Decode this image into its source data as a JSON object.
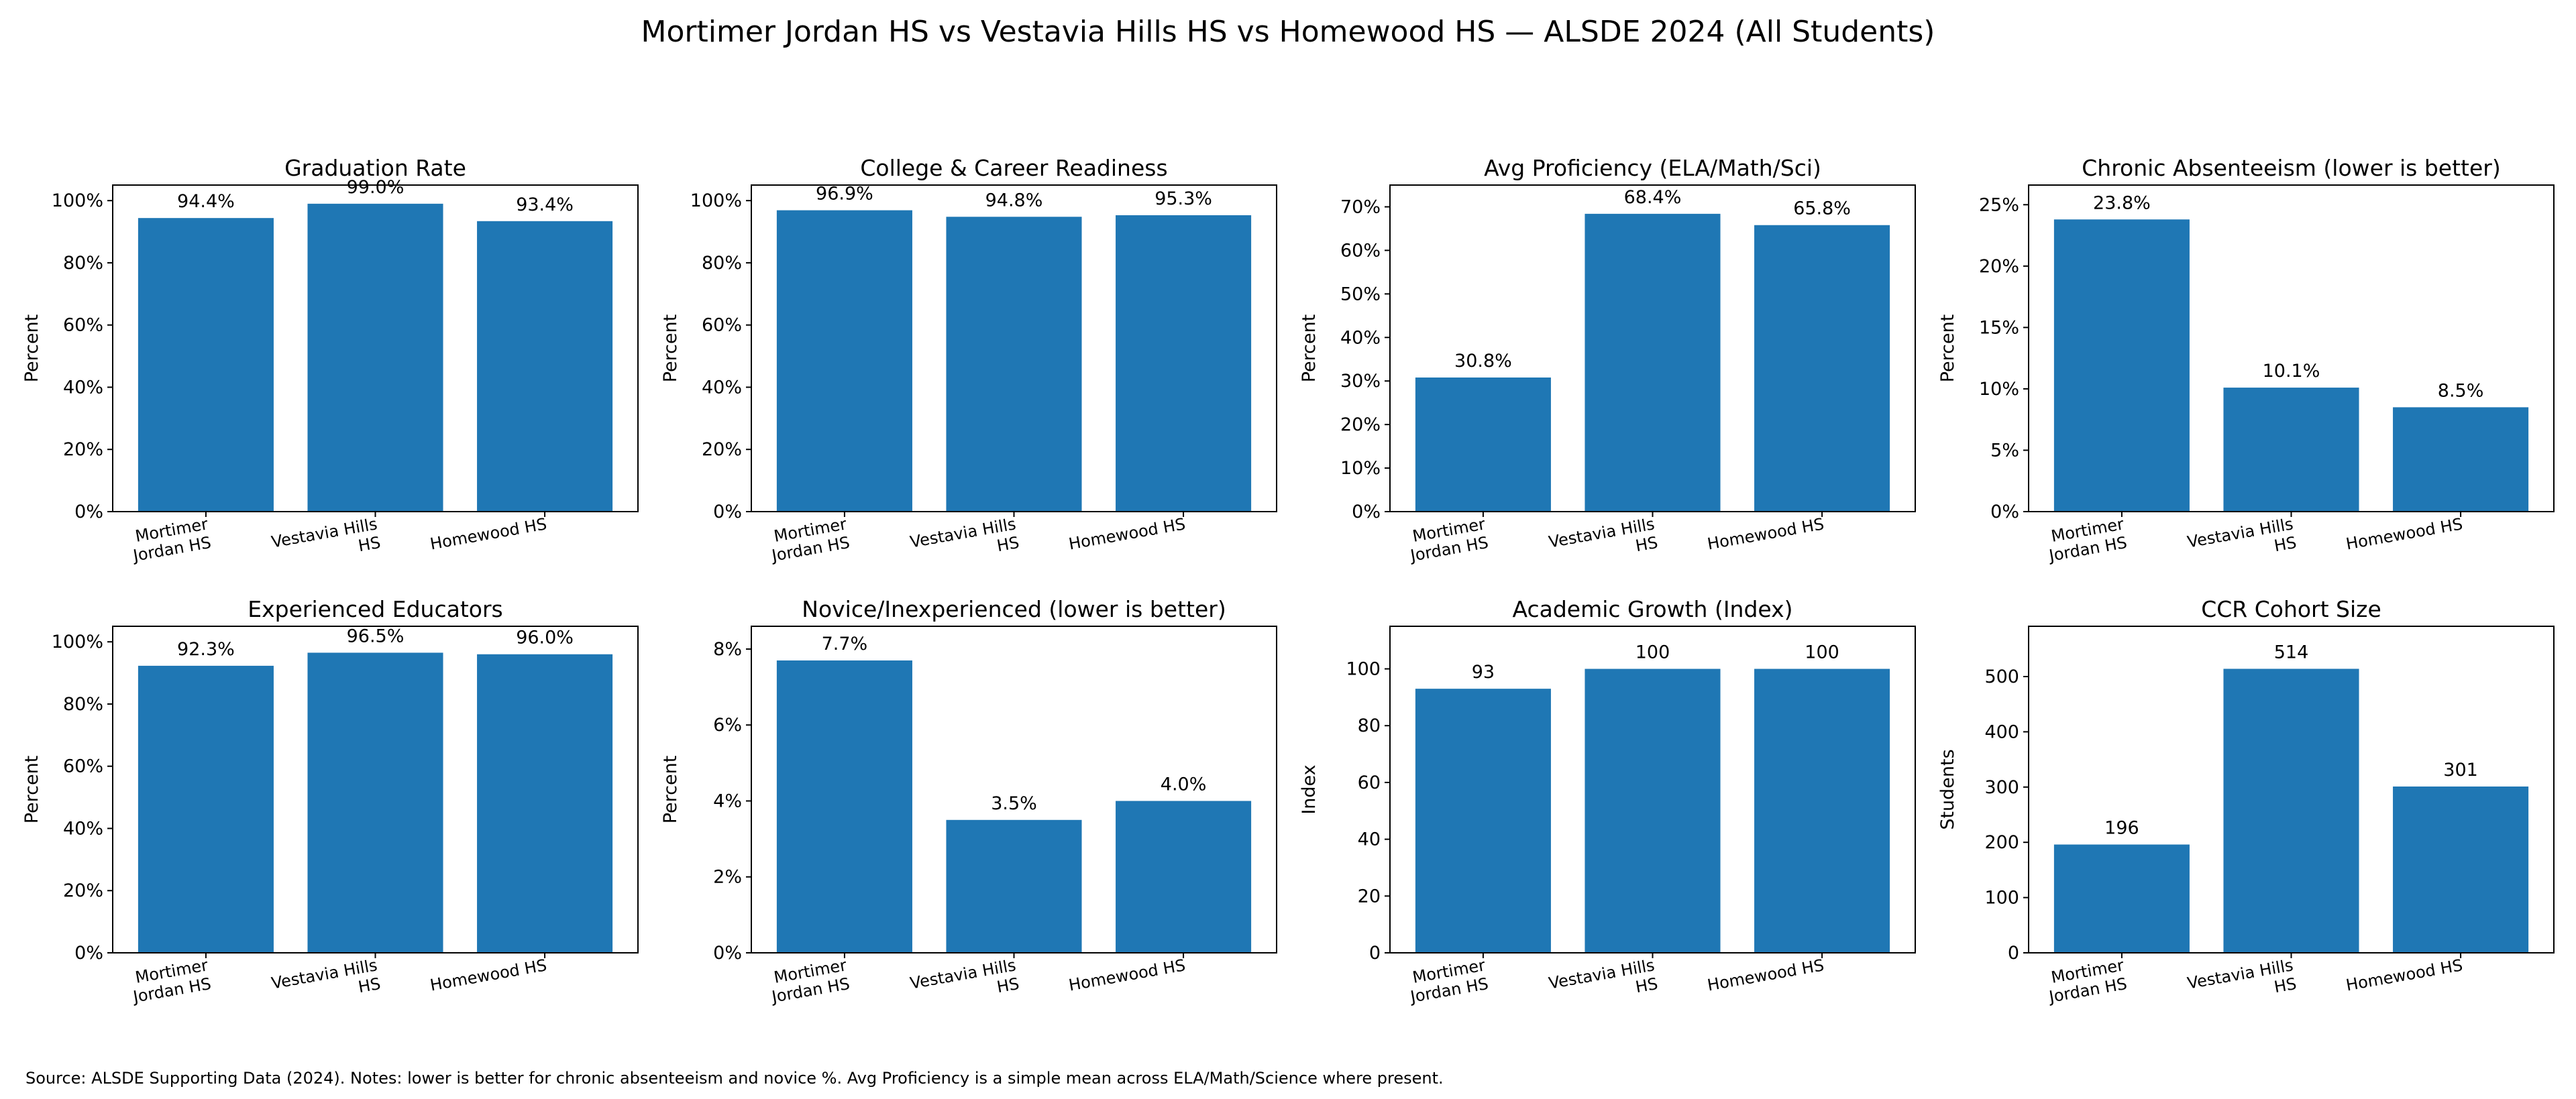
{
  "suptitle": "Mortimer Jordan HS vs Vestavia Hills HS vs Homewood HS — ALSDE 2024 (All Students)",
  "source_note": "Source: ALSDE Supporting Data (2024). Notes: lower is better for chronic absenteeism and novice %. Avg Proficiency is a simple mean across ELA/Math/Science where present.",
  "colors": {
    "bar": "#1f77b4",
    "axis": "#000000"
  },
  "chart_data": [
    {
      "type": "bar",
      "title": "Graduation Rate",
      "ylabel": "Percent",
      "categories": [
        [
          "Mortimer",
          "Jordan HS"
        ],
        [
          "Vestavia Hills",
          "HS"
        ],
        [
          "Homewood HS"
        ]
      ],
      "values": [
        94.4,
        99.0,
        93.4
      ],
      "value_labels": [
        "94.4%",
        "99.0%",
        "93.4%"
      ],
      "ylim": [
        0,
        105
      ],
      "yticks": [
        0,
        20,
        40,
        60,
        80,
        100
      ],
      "ytick_labels": [
        "0%",
        "20%",
        "40%",
        "60%",
        "80%",
        "100%"
      ]
    },
    {
      "type": "bar",
      "title": "College & Career Readiness",
      "ylabel": "Percent",
      "categories": [
        [
          "Mortimer",
          "Jordan HS"
        ],
        [
          "Vestavia Hills",
          "HS"
        ],
        [
          "Homewood HS"
        ]
      ],
      "values": [
        96.9,
        94.8,
        95.3
      ],
      "value_labels": [
        "96.9%",
        "94.8%",
        "95.3%"
      ],
      "ylim": [
        0,
        105
      ],
      "yticks": [
        0,
        20,
        40,
        60,
        80,
        100
      ],
      "ytick_labels": [
        "0%",
        "20%",
        "40%",
        "60%",
        "80%",
        "100%"
      ]
    },
    {
      "type": "bar",
      "title": "Avg Proficiency (ELA/Math/Sci)",
      "ylabel": "Percent",
      "categories": [
        [
          "Mortimer",
          "Jordan HS"
        ],
        [
          "Vestavia Hills",
          "HS"
        ],
        [
          "Homewood HS"
        ]
      ],
      "values": [
        30.8,
        68.4,
        65.8
      ],
      "value_labels": [
        "30.8%",
        "68.4%",
        "65.8%"
      ],
      "ylim": [
        0,
        75
      ],
      "yticks": [
        0,
        10,
        20,
        30,
        40,
        50,
        60,
        70
      ],
      "ytick_labels": [
        "0%",
        "10%",
        "20%",
        "30%",
        "40%",
        "50%",
        "60%",
        "70%"
      ]
    },
    {
      "type": "bar",
      "title": "Chronic Absenteeism (lower is better)",
      "ylabel": "Percent",
      "categories": [
        [
          "Mortimer",
          "Jordan HS"
        ],
        [
          "Vestavia Hills",
          "HS"
        ],
        [
          "Homewood HS"
        ]
      ],
      "values": [
        23.8,
        10.1,
        8.5
      ],
      "value_labels": [
        "23.8%",
        "10.1%",
        "8.5%"
      ],
      "ylim": [
        0,
        26.6
      ],
      "yticks": [
        0,
        5,
        10,
        15,
        20,
        25
      ],
      "ytick_labels": [
        "0%",
        "5%",
        "10%",
        "15%",
        "20%",
        "25%"
      ]
    },
    {
      "type": "bar",
      "title": "Experienced Educators",
      "ylabel": "Percent",
      "categories": [
        [
          "Mortimer",
          "Jordan HS"
        ],
        [
          "Vestavia Hills",
          "HS"
        ],
        [
          "Homewood HS"
        ]
      ],
      "values": [
        92.3,
        96.5,
        96.0
      ],
      "value_labels": [
        "92.3%",
        "96.5%",
        "96.0%"
      ],
      "ylim": [
        0,
        105
      ],
      "yticks": [
        0,
        20,
        40,
        60,
        80,
        100
      ],
      "ytick_labels": [
        "0%",
        "20%",
        "40%",
        "60%",
        "80%",
        "100%"
      ]
    },
    {
      "type": "bar",
      "title": "Novice/Inexperienced (lower is better)",
      "ylabel": "Percent",
      "categories": [
        [
          "Mortimer",
          "Jordan HS"
        ],
        [
          "Vestavia Hills",
          "HS"
        ],
        [
          "Homewood HS"
        ]
      ],
      "values": [
        7.7,
        3.5,
        4.0
      ],
      "value_labels": [
        "7.7%",
        "3.5%",
        "4.0%"
      ],
      "ylim": [
        0,
        8.6
      ],
      "yticks": [
        0,
        2,
        4,
        6,
        8
      ],
      "ytick_labels": [
        "0%",
        "2%",
        "4%",
        "6%",
        "8%"
      ]
    },
    {
      "type": "bar",
      "title": "Academic Growth (Index)",
      "ylabel": "Index",
      "categories": [
        [
          "Mortimer",
          "Jordan HS"
        ],
        [
          "Vestavia Hills",
          "HS"
        ],
        [
          "Homewood HS"
        ]
      ],
      "values": [
        93,
        100,
        100
      ],
      "value_labels": [
        "93",
        "100",
        "100"
      ],
      "ylim": [
        0,
        115
      ],
      "yticks": [
        0,
        20,
        40,
        60,
        80,
        100
      ],
      "ytick_labels": [
        "0",
        "20",
        "40",
        "60",
        "80",
        "100"
      ]
    },
    {
      "type": "bar",
      "title": "CCR Cohort Size",
      "ylabel": "Students",
      "categories": [
        [
          "Mortimer",
          "Jordan HS"
        ],
        [
          "Vestavia Hills",
          "HS"
        ],
        [
          "Homewood HS"
        ]
      ],
      "values": [
        196,
        514,
        301
      ],
      "value_labels": [
        "196",
        "514",
        "301"
      ],
      "ylim": [
        0,
        591
      ],
      "yticks": [
        0,
        100,
        200,
        300,
        400,
        500
      ],
      "ytick_labels": [
        "0",
        "100",
        "200",
        "300",
        "400",
        "500"
      ]
    }
  ]
}
